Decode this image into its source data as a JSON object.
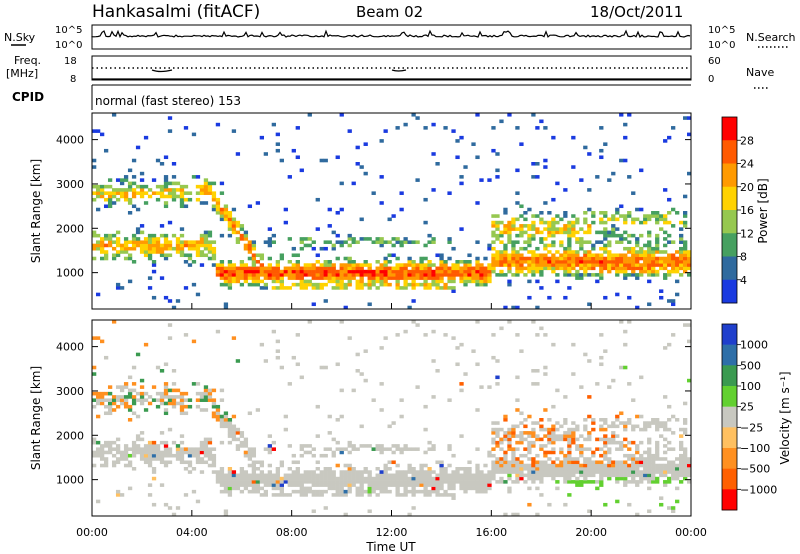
{
  "header": {
    "station": "Hankasalmi (fitACF)",
    "beam": "Beam 02",
    "date": "18/Oct/2011"
  },
  "panels": {
    "nsky": {
      "label": "N.Sky",
      "right_label": "N.Search",
      "ticks_left": [
        "10^5",
        "10^0"
      ],
      "ticks_right": [
        "10^5",
        "10^0"
      ]
    },
    "freq": {
      "label_line1": "Freq.",
      "label_line2": "[MHz]",
      "right_label": "Nave",
      "ticks_left": [
        "18",
        "8"
      ],
      "ticks_right": [
        "60",
        "0"
      ]
    },
    "cpid": {
      "label": "CPID",
      "text": "normal (fast stereo) 153"
    }
  },
  "chart_data": [
    {
      "type": "heatmap",
      "title": "",
      "xlabel": "",
      "ylabel": "Slant Range [km]",
      "ylim": [
        180,
        4600
      ],
      "yticks": [
        "4000",
        "3000",
        "2000",
        "1000"
      ],
      "colorbar": {
        "label": "Power [dB]",
        "ticks": [
          "28",
          "24",
          "20",
          "16",
          "12",
          "8",
          "4"
        ],
        "colors": [
          "#ff0000",
          "#ff5a00",
          "#ff9a00",
          "#ffd200",
          "#96c850",
          "#46a060",
          "#2f6a9e",
          "#1a3ae0"
        ]
      }
    },
    {
      "type": "heatmap",
      "title": "",
      "xlabel": "Time UT",
      "ylabel": "Slant Range [km]",
      "ylim": [
        180,
        4600
      ],
      "yticks": [
        "4000",
        "3000",
        "2000",
        "1000"
      ],
      "xticks": [
        "00:00",
        "04:00",
        "08:00",
        "12:00",
        "16:00",
        "20:00",
        "00:00"
      ],
      "colorbar": {
        "label": "Velocity [m s⁻¹]",
        "ticks": [
          "1000",
          "500",
          "100",
          "25",
          "−25",
          "−100",
          "−500",
          "−1000"
        ],
        "colors": [
          "#1f3fcc",
          "#2e6fa8",
          "#3a9a50",
          "#62d030",
          "#c8c8c0",
          "#ffc060",
          "#ff9020",
          "#ff6000",
          "#ff0000"
        ]
      }
    }
  ]
}
